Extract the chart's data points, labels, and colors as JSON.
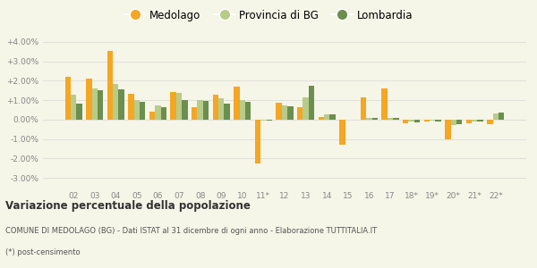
{
  "years": [
    "02",
    "03",
    "04",
    "05",
    "06",
    "07",
    "08",
    "09",
    "10",
    "11*",
    "12",
    "13",
    "14",
    "15",
    "16",
    "17",
    "18*",
    "19*",
    "20*",
    "21*",
    "22*"
  ],
  "medolago": [
    2.2,
    2.1,
    3.55,
    1.35,
    0.42,
    1.4,
    0.62,
    1.3,
    1.7,
    -2.25,
    0.85,
    0.62,
    0.12,
    -1.3,
    1.15,
    1.6,
    -0.18,
    -0.1,
    -1.02,
    -0.2,
    -0.22
  ],
  "provincia_bg": [
    1.3,
    1.62,
    1.85,
    1.0,
    0.72,
    1.38,
    1.0,
    1.08,
    1.0,
    -0.05,
    0.73,
    1.15,
    0.28,
    0.0,
    0.08,
    0.08,
    -0.12,
    -0.05,
    -0.28,
    -0.1,
    0.3
  ],
  "lombardia": [
    0.8,
    1.52,
    1.55,
    0.9,
    0.62,
    1.02,
    0.95,
    0.8,
    0.9,
    -0.05,
    0.7,
    1.72,
    0.28,
    0.0,
    0.1,
    0.08,
    -0.15,
    -0.1,
    -0.25,
    -0.1,
    0.35
  ],
  "color_medolago": "#f5a623",
  "color_provincia": "#b8cc8a",
  "color_lombardia": "#6b8f4e",
  "ylim_min": -3.5,
  "ylim_max": 4.5,
  "yticks": [
    -3.0,
    -2.0,
    -1.0,
    0.0,
    1.0,
    2.0,
    3.0,
    4.0
  ],
  "ytick_labels": [
    "-3.00%",
    "-2.00%",
    "-1.00%",
    "0.00%",
    "+1.00%",
    "+2.00%",
    "+3.00%",
    "+4.00%"
  ],
  "title_bold": "Variazione percentuale della popolazione",
  "subtitle": "COMUNE DI MEDOLAGO (BG) - Dati ISTAT al 31 dicembre di ogni anno - Elaborazione TUTTITALIA.IT",
  "footnote": "(*) post-censimento",
  "legend_labels": [
    "Medolago",
    "Provincia di BG",
    "Lombardia"
  ],
  "background_color": "#f5f5e8",
  "grid_color": "#d8d8d8"
}
